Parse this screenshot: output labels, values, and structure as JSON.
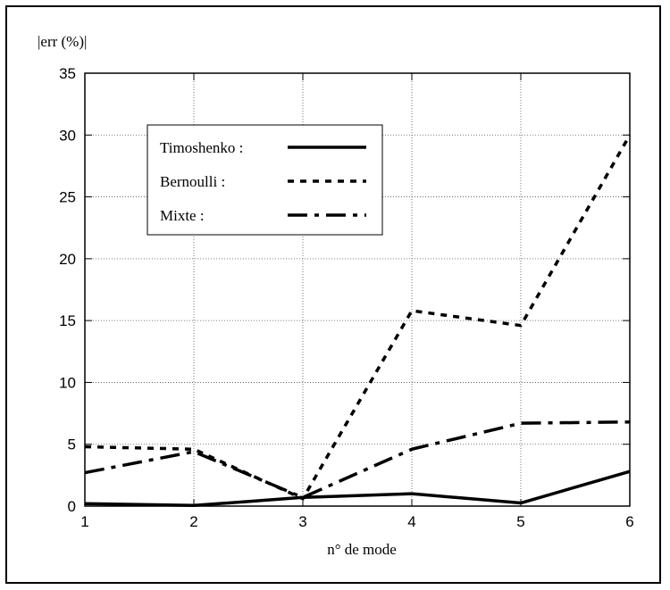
{
  "chart_data": {
    "type": "line",
    "title": "",
    "ylabel": "|err (%)|",
    "xlabel": "n° de mode",
    "x": [
      1,
      2,
      3,
      4,
      5,
      6
    ],
    "xlim": [
      1,
      6
    ],
    "ylim": [
      0,
      35
    ],
    "xticks": [
      "1",
      "2",
      "3",
      "4",
      "5",
      "6"
    ],
    "yticks": [
      "0",
      "5",
      "10",
      "15",
      "20",
      "25",
      "30",
      "35"
    ],
    "grid": true,
    "legend_position": "top-left",
    "series": [
      {
        "name": "Timoshenko :",
        "style": "solid",
        "values": [
          0.2,
          0.05,
          0.7,
          1.0,
          0.25,
          2.8
        ]
      },
      {
        "name": "Bernoulli :",
        "style": "dotted",
        "values": [
          4.8,
          4.6,
          0.6,
          15.8,
          14.6,
          30.0
        ]
      },
      {
        "name": "Mixte :",
        "style": "dashdot",
        "values": [
          2.7,
          4.4,
          0.7,
          4.6,
          6.7,
          6.8
        ]
      }
    ]
  }
}
